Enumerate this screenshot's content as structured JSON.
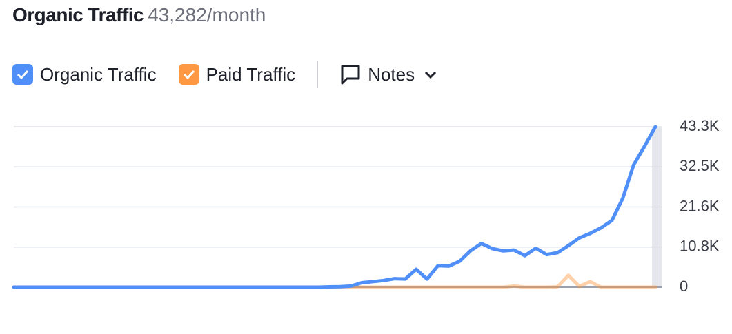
{
  "chart_data": {
    "type": "line",
    "title": "Organic Traffic",
    "subtitle": "43,282/month",
    "categories": [
      null,
      null,
      null,
      null,
      null,
      null,
      null,
      null,
      null,
      null,
      null,
      null,
      null,
      null,
      null,
      null,
      null,
      null,
      null,
      null,
      null,
      null,
      null,
      null,
      null,
      null,
      null,
      null,
      null,
      null,
      null,
      null,
      null,
      null,
      null,
      null,
      null,
      null,
      null,
      null,
      null,
      null,
      null,
      null,
      null,
      null,
      null,
      null,
      null,
      null,
      null,
      null,
      null,
      null,
      null,
      null,
      null,
      null,
      null,
      null
    ],
    "series": [
      {
        "name": "Organic Traffic",
        "color": "#4f8ff7",
        "values": [
          0,
          0,
          0,
          0,
          0,
          0,
          0,
          0,
          0,
          0,
          0,
          0,
          0,
          0,
          0,
          0,
          0,
          0,
          0,
          0,
          0,
          0,
          0,
          0,
          0,
          0,
          0,
          0,
          0,
          100,
          150,
          300,
          1200,
          1500,
          1800,
          2300,
          2200,
          4800,
          2200,
          5800,
          5700,
          7000,
          9800,
          11800,
          10400,
          9800,
          10000,
          8500,
          10500,
          8800,
          9300,
          11200,
          13300,
          14500,
          16000,
          18000,
          24000,
          33000,
          38000,
          43282
        ]
      },
      {
        "name": "Paid Traffic",
        "color": "#ff9843",
        "values": [
          0,
          0,
          0,
          0,
          0,
          0,
          0,
          0,
          0,
          0,
          0,
          0,
          0,
          0,
          0,
          0,
          0,
          0,
          0,
          0,
          0,
          0,
          0,
          0,
          0,
          0,
          0,
          0,
          0,
          0,
          0,
          0,
          0,
          0,
          0,
          0,
          0,
          0,
          0,
          0,
          0,
          0,
          0,
          0,
          0,
          0,
          300,
          0,
          0,
          0,
          100,
          3200,
          200,
          1500,
          0,
          0,
          0,
          0,
          0,
          0
        ]
      }
    ],
    "ylim": [
      0,
      43282
    ],
    "yticks": [
      0,
      {
        "value": 10820.5,
        "label": "10.8K"
      },
      {
        "value": 21641,
        "label": "21.6K"
      },
      {
        "value": 32461.5,
        "label": "32.5K"
      },
      {
        "value": 43282,
        "label": "43.3K"
      }
    ],
    "grid": true
  },
  "notes_button": "Notes"
}
